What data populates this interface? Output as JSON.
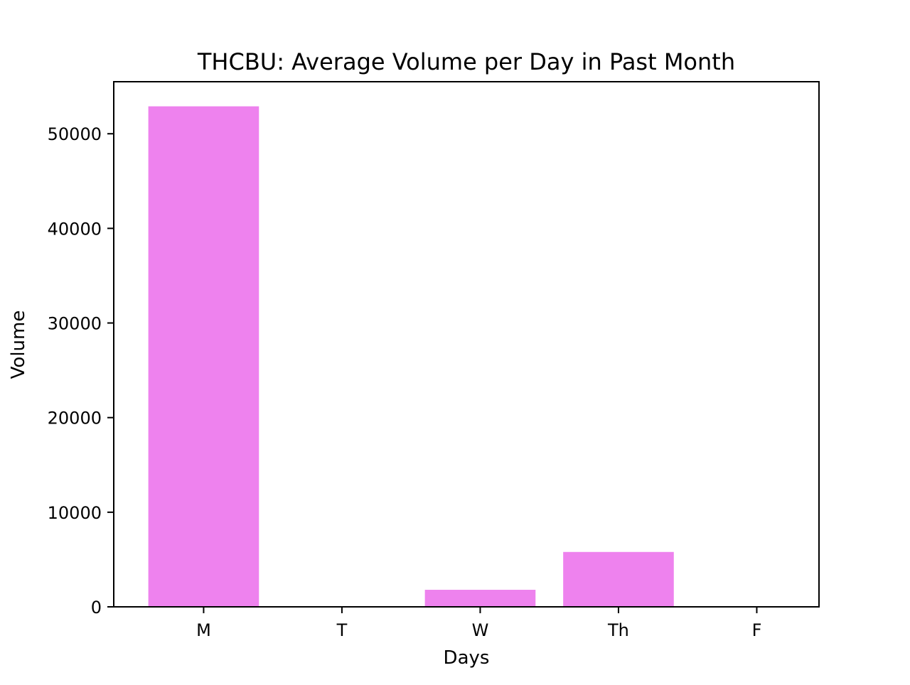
{
  "chart_data": {
    "type": "bar",
    "title": "THCBU: Average Volume per Day in Past Month",
    "xlabel": "Days",
    "ylabel": "Volume",
    "categories": [
      "M",
      "T",
      "W",
      "Th",
      "F"
    ],
    "values": [
      52900,
      0,
      1800,
      5800,
      0
    ],
    "ylim": [
      0,
      55500
    ],
    "yticks": [
      0,
      10000,
      20000,
      30000,
      40000,
      50000
    ],
    "ytick_labels": [
      "0",
      "10000",
      "20000",
      "30000",
      "40000",
      "50000"
    ],
    "bar_color": "#ee82ee",
    "grid": false,
    "legend": "none"
  }
}
